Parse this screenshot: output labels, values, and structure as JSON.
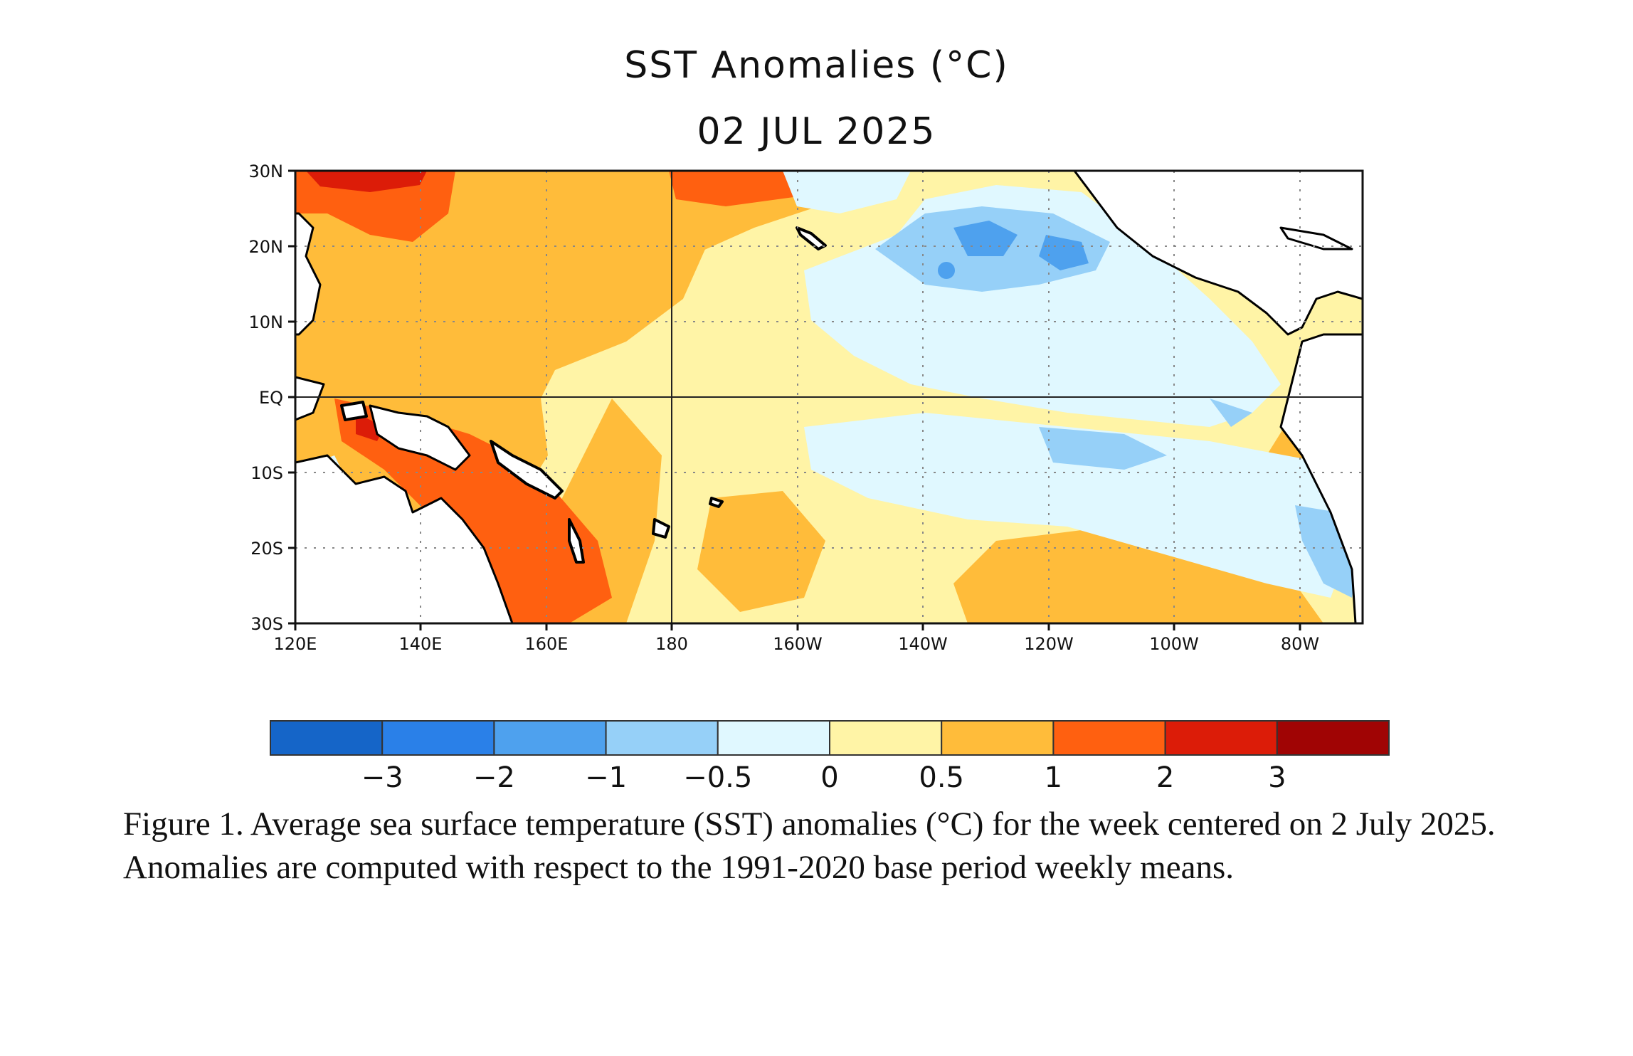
{
  "figure": {
    "title": "SST Anomalies (°C)",
    "date": "02 JUL 2025",
    "caption": "Figure 1. Average sea surface temperature (SST) anomalies (°C) for the week centered on 2 July 2025.  Anomalies are computed with respect to the 1991-2020 base period weekly means."
  },
  "map": {
    "lat_labels": [
      "30N",
      "20N",
      "10N",
      "EQ",
      "10S",
      "20S",
      "30S"
    ],
    "lon_labels": [
      "120E",
      "140E",
      "160E",
      "180",
      "160W",
      "140W",
      "120W",
      "100W",
      "80W"
    ],
    "lat_range": [
      -30,
      30
    ],
    "lon_range": [
      120,
      290
    ],
    "grid": "dotted",
    "land_color": "#ffffff"
  },
  "colorbar": {
    "colors": [
      "#1565c8",
      "#2a80e8",
      "#4ea1ee",
      "#96d0f8",
      "#e0f8ff",
      "#fff4a6",
      "#ffbc3a",
      "#ff6010",
      "#dc1c08",
      "#a00404"
    ],
    "tick_labels": [
      "−3",
      "−2",
      "−1",
      "−0.5",
      "0",
      "0.5",
      "1",
      "2",
      "3"
    ]
  }
}
